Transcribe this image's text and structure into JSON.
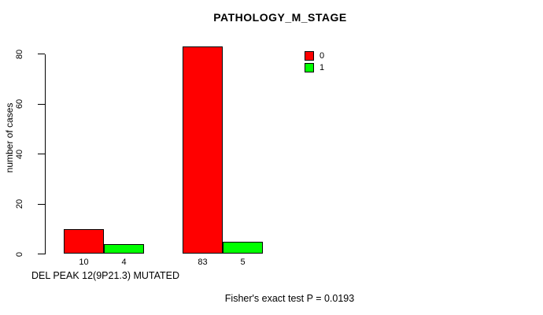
{
  "chart_data": {
    "type": "bar",
    "title": "PATHOLOGY_M_STAGE",
    "ylabel": "number of cases",
    "xlabel": "DEL PEAK 12(9P21.3) MUTATED",
    "annotation": "Fisher's exact test P = 0.0193",
    "yticks": [
      0,
      20,
      40,
      60,
      80
    ],
    "ylim": [
      0,
      83
    ],
    "grid": false,
    "legend_position": "top-right",
    "legend": [
      {
        "label": "0",
        "color": "#FF0000"
      },
      {
        "label": "1",
        "color": "#00FF00"
      }
    ],
    "series": [
      {
        "name": "0",
        "color": "#FF0000",
        "values": [
          10,
          83
        ]
      },
      {
        "name": "1",
        "color": "#00FF00",
        "values": [
          4,
          5
        ]
      }
    ],
    "bar_labels": [
      [
        "10",
        "4"
      ],
      [
        "83",
        "5"
      ]
    ]
  }
}
